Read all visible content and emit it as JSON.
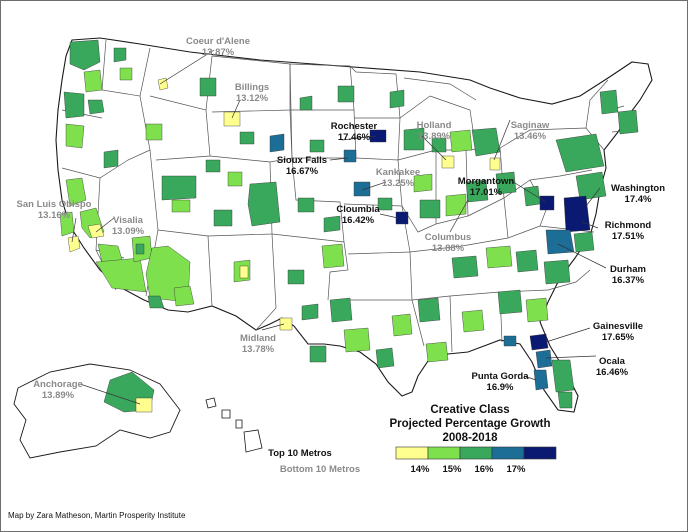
{
  "map": {
    "title_lines": [
      "Creative Class",
      "Projected Percentage Growth",
      "2008-2018"
    ],
    "legend": {
      "top_label": "Top 10 Metros",
      "bottom_label": "Bottom 10 Metros",
      "bins": [
        {
          "label": "14%",
          "color": "#ffff8f"
        },
        {
          "label": "15%",
          "color": "#7fe04e"
        },
        {
          "label": "16%",
          "color": "#3aa85c"
        },
        {
          "label": "17%",
          "color": "#1d6e96"
        },
        {
          "label": "",
          "color": "#0a1a72"
        }
      ]
    },
    "credit": "Map by Zara Matheson, Martin Prosperity Institute",
    "top_metros": [
      {
        "name": "Rochester",
        "value": "17.46%"
      },
      {
        "name": "Sioux Falls",
        "value": "16.67%"
      },
      {
        "name": "Cloumbia",
        "value": "16.42%"
      },
      {
        "name": "Morgantown",
        "value": "17.01%"
      },
      {
        "name": "Washington",
        "value": "17.4%"
      },
      {
        "name": "Richmond",
        "value": "17.51%"
      },
      {
        "name": "Durham",
        "value": "16.37%"
      },
      {
        "name": "Gainesville",
        "value": "17.65%"
      },
      {
        "name": "Ocala",
        "value": "16.46%"
      },
      {
        "name": "Punta Gorda",
        "value": "16.9%"
      }
    ],
    "bottom_metros": [
      {
        "name": "Coeur d'Alene",
        "value": "13.87%"
      },
      {
        "name": "Billings",
        "value": "13.12%"
      },
      {
        "name": "Holland",
        "value": "13.89%"
      },
      {
        "name": "Saginaw",
        "value": "13.46%"
      },
      {
        "name": "Kankakee",
        "value": "13.25%"
      },
      {
        "name": "San Luis Obispo",
        "value": "13.16%"
      },
      {
        "name": "Visalia",
        "value": "13.09%"
      },
      {
        "name": "Columbus",
        "value": "13.88%"
      },
      {
        "name": "Midland",
        "value": "13.78%"
      },
      {
        "name": "Anchorage",
        "value": "13.89%"
      }
    ]
  }
}
